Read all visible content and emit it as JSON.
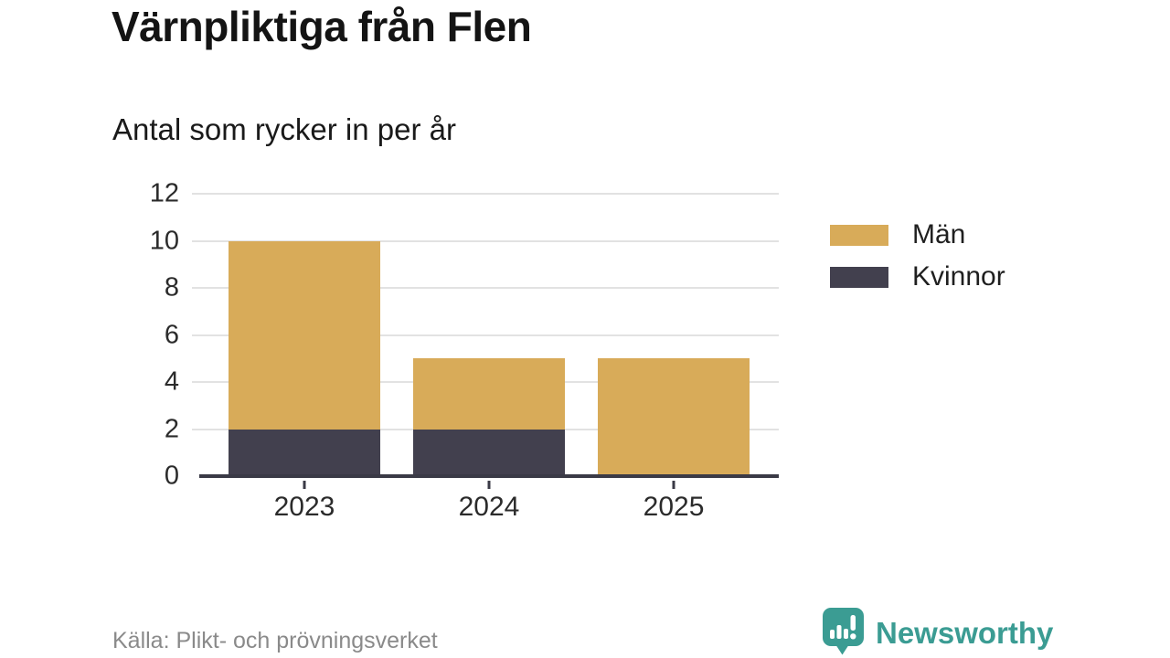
{
  "header": {
    "title": "Värnpliktiga från Flen",
    "subtitle": "Antal som rycker in per år"
  },
  "chart_data": {
    "type": "bar",
    "stacked": true,
    "title": "Värnpliktiga från Flen",
    "subtitle": "Antal som rycker in per år",
    "categories": [
      "2023",
      "2024",
      "2025"
    ],
    "series": [
      {
        "name": "Män",
        "color": "#D8AB59",
        "values": [
          8,
          3,
          5
        ]
      },
      {
        "name": "Kvinnor",
        "color": "#42404E",
        "values": [
          2,
          2,
          0
        ]
      }
    ],
    "stack_totals": [
      10,
      5,
      5
    ],
    "xlabel": "",
    "ylabel": "",
    "ylim": [
      0,
      12
    ],
    "yticks": [
      0,
      2,
      4,
      6,
      8,
      10,
      12
    ],
    "grid": "horizontal",
    "legend_position": "right"
  },
  "footer": {
    "source": "Källa: Plikt- och prövningsverket",
    "brand": "Newsworthy"
  },
  "colors": {
    "grid": "#E2E2E2",
    "axis": "#3A3A46",
    "tick_label": "#2B2B2B",
    "title_text": "#141414",
    "source_text": "#8A8A8A",
    "brand_teal": "#3B9C93"
  }
}
